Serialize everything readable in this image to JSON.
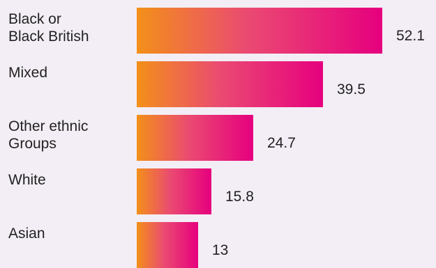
{
  "chart_data": {
    "type": "bar",
    "orientation": "horizontal",
    "categories": [
      [
        "Black or",
        "Black British"
      ],
      [
        "Mixed"
      ],
      [
        "Other ethnic",
        "Groups"
      ],
      [
        "White"
      ],
      [
        "Asian"
      ]
    ],
    "values": [
      52.1,
      39.5,
      24.7,
      15.8,
      13
    ],
    "value_labels": [
      "52.1",
      "39.5",
      "24.7",
      "15.8",
      "13"
    ],
    "xlim": [
      0,
      52.1
    ],
    "grid": false,
    "legend": "none",
    "colors": {
      "gradient_start": "#f39019",
      "gradient_mid": "#ea4a72",
      "gradient_end": "#e6007e",
      "background": "#f3eef5",
      "text": "#222222"
    }
  }
}
